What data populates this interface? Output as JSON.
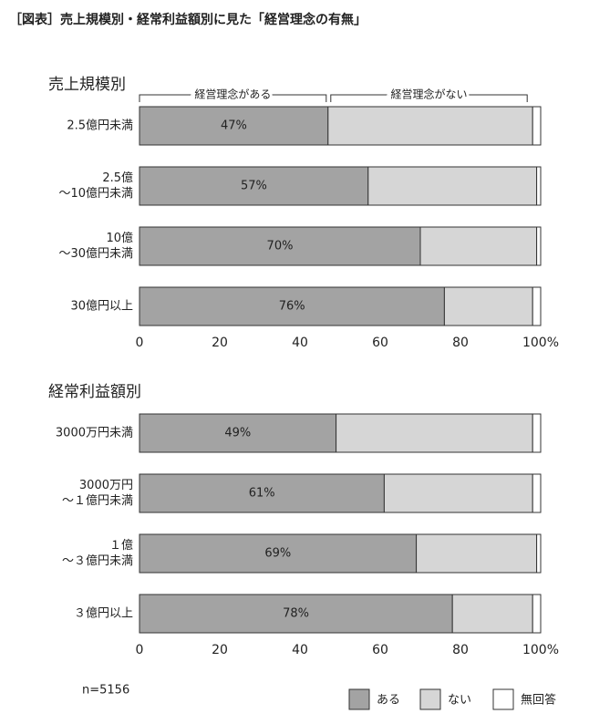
{
  "title": "［図表］売上規模別・経常利益額別に見た「経営理念の有無」",
  "note": "n=5156",
  "chart_data": [
    {
      "type": "stacked-bar-horizontal",
      "title": "売上規模別",
      "bracket_labels": [
        "経営理念がある",
        "経営理念がない"
      ],
      "categories": [
        "2.5億円未満",
        "2.5億\n～10億円未満",
        "10億\n～30億円未満",
        "30億円以上"
      ],
      "series": [
        {
          "name": "ある",
          "color": "#a3a3a3",
          "values": [
            47,
            57,
            70,
            76
          ],
          "value_labels": [
            "47%",
            "57%",
            "70%",
            "76%"
          ]
        },
        {
          "name": "ない",
          "color": "#d6d6d6",
          "values": [
            51,
            42,
            29,
            22
          ]
        },
        {
          "name": "無回答",
          "color": "#ffffff",
          "values": [
            2,
            1,
            1,
            2
          ]
        }
      ],
      "xlim": [
        0,
        100
      ],
      "xticks": [
        0,
        20,
        40,
        60,
        80,
        {
          "value": 100,
          "label": "100%"
        }
      ]
    },
    {
      "type": "stacked-bar-horizontal",
      "title": "経常利益額別",
      "categories": [
        "3000万円未満",
        "3000万円\n～１億円未満",
        "１億\n～３億円未満",
        "３億円以上"
      ],
      "series": [
        {
          "name": "ある",
          "color": "#a3a3a3",
          "values": [
            49,
            61,
            69,
            78
          ],
          "value_labels": [
            "49%",
            "61%",
            "69%",
            "78%"
          ]
        },
        {
          "name": "ない",
          "color": "#d6d6d6",
          "values": [
            49,
            37,
            30,
            20
          ]
        },
        {
          "name": "無回答",
          "color": "#ffffff",
          "values": [
            2,
            2,
            1,
            2
          ]
        }
      ],
      "xlim": [
        0,
        100
      ],
      "xticks": [
        0,
        20,
        40,
        60,
        80,
        {
          "value": 100,
          "label": "100%"
        }
      ]
    }
  ]
}
